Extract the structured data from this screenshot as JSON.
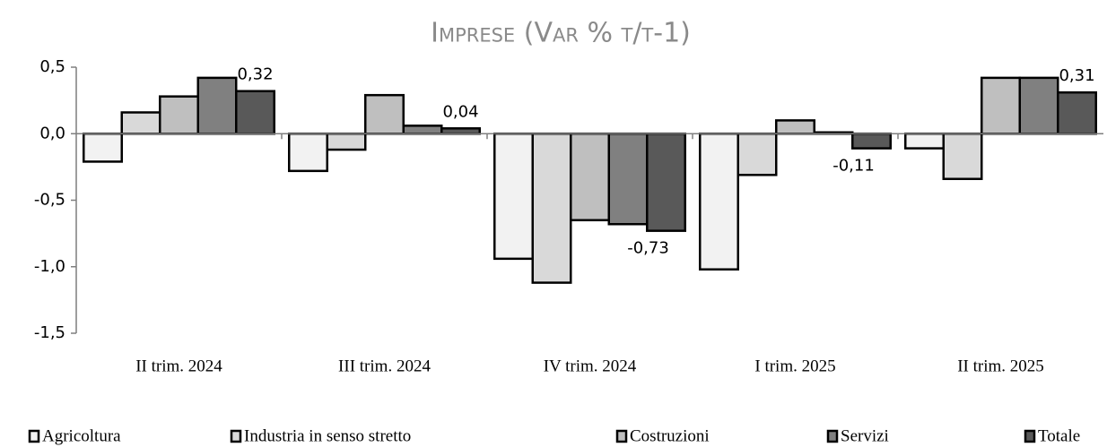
{
  "chart_data": {
    "type": "bar",
    "title": "Imprese (Var % t/t-1)",
    "categories": [
      "II trim. 2024",
      "III trim. 2024",
      "IV trim. 2024",
      "I trim. 2025",
      "II trim. 2025"
    ],
    "series": [
      {
        "name": "Agricoltura",
        "color": "#f2f2f2",
        "values": [
          -0.21,
          -0.28,
          -0.94,
          -1.02,
          -0.11
        ]
      },
      {
        "name": "Industria in senso stretto",
        "color": "#d9d9d9",
        "values": [
          0.16,
          -0.12,
          -1.12,
          -0.31,
          -0.34
        ]
      },
      {
        "name": "Costruzioni",
        "color": "#bfbfbf",
        "values": [
          0.28,
          0.29,
          -0.65,
          0.1,
          0.42
        ]
      },
      {
        "name": "Servizi",
        "color": "#808080",
        "values": [
          0.42,
          0.06,
          -0.68,
          0.01,
          0.42
        ]
      },
      {
        "name": "Totale",
        "color": "#595959",
        "values": [
          0.32,
          0.04,
          -0.73,
          -0.11,
          0.31
        ],
        "value_labels": [
          "0,32",
          "0,04",
          "-0,73",
          "-0,11",
          "0,31"
        ]
      }
    ],
    "ylim": [
      -1.5,
      0.5
    ],
    "yticks": [
      {
        "value": -1.5,
        "label": "-1,5"
      },
      {
        "value": -1.0,
        "label": "-1,0"
      },
      {
        "value": -0.5,
        "label": "-0,5"
      },
      {
        "value": 0.0,
        "label": "0,0"
      },
      {
        "value": 0.5,
        "label": "0,5"
      }
    ],
    "legend": "bottom"
  }
}
